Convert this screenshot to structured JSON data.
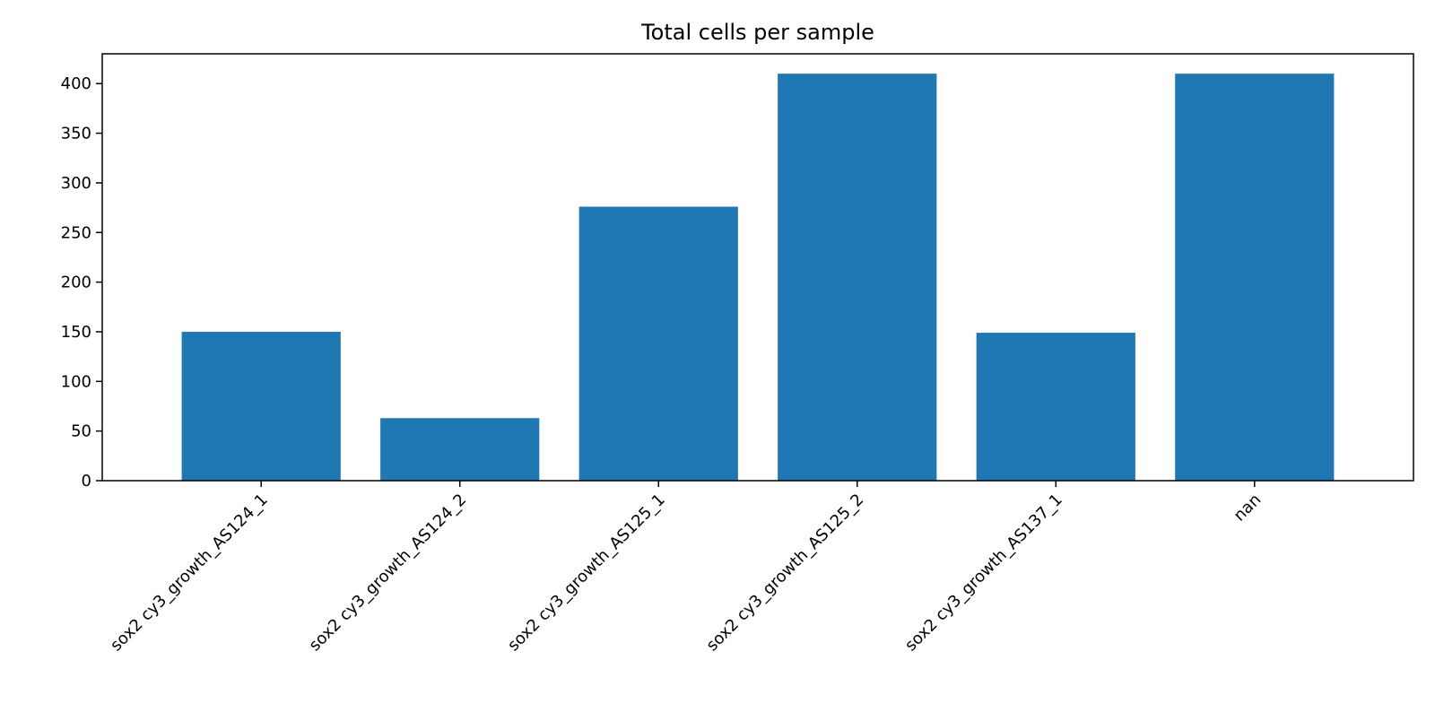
{
  "chart_data": {
    "type": "bar",
    "title": "Total cells per sample",
    "xlabel": "",
    "ylabel": "",
    "categories": [
      "sox2 cy3_growth_AS124_1",
      "sox2 cy3_growth_AS124_2",
      "sox2 cy3_growth_AS125_1",
      "sox2 cy3_growth_AS125_2",
      "sox2 cy3_growth_AS137_1",
      "nan"
    ],
    "values": [
      150,
      63,
      276,
      410,
      149,
      410
    ],
    "ylim": [
      0,
      430
    ],
    "yticks": [
      0,
      50,
      100,
      150,
      200,
      250,
      300,
      350,
      400
    ],
    "grid": false,
    "legend": "none",
    "colors": {
      "bar": "#1f77b4",
      "axis": "#000000"
    }
  }
}
